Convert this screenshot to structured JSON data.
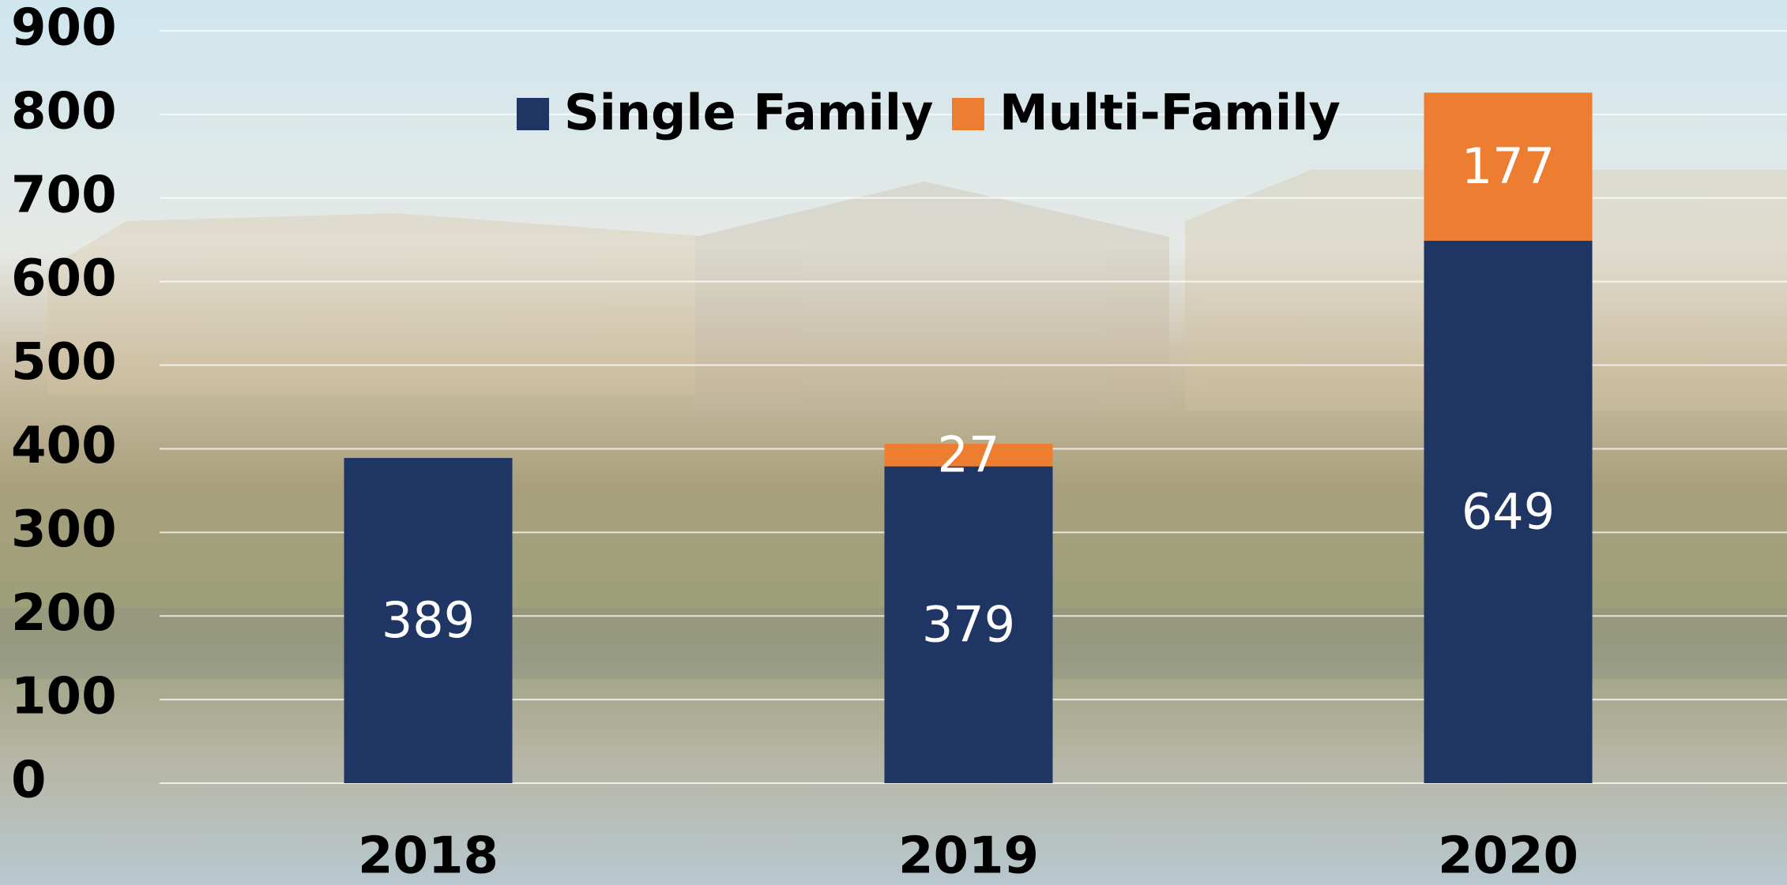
{
  "chart_data": {
    "type": "stacked_bar",
    "categories": [
      "2018",
      "2019",
      "2020"
    ],
    "series": [
      {
        "name": "Single Family",
        "color": "#1f3564",
        "values": [
          389,
          379,
          649
        ]
      },
      {
        "name": "Multi-Family",
        "color": "#ed7d31",
        "values": [
          null,
          27,
          177
        ]
      }
    ],
    "ylim": [
      0,
      900
    ],
    "yticks": [
      0,
      100,
      200,
      300,
      400,
      500,
      600,
      700,
      800,
      900
    ],
    "grid": true,
    "legend": "top"
  }
}
